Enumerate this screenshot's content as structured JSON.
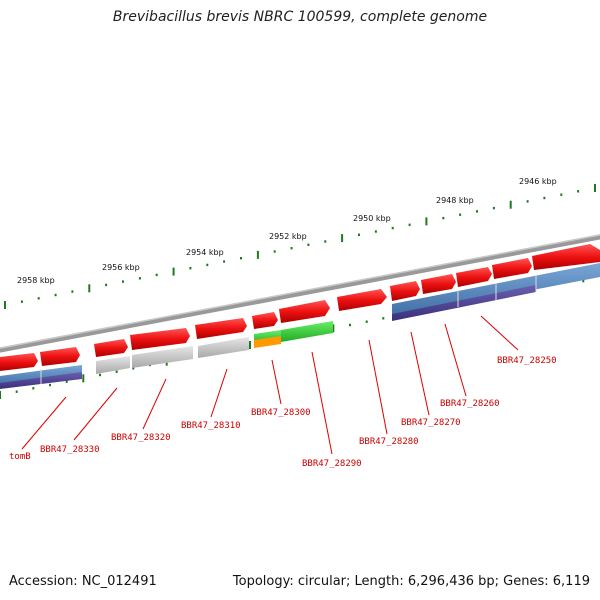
{
  "title": "Brevibacillus brevis NBRC 100599, complete genome",
  "footer": {
    "accession": "Accession: NC_012491",
    "stats": "Topology: circular; Length: 6,296,436 bp; Genes: 6,119"
  },
  "colors": {
    "forward_gene": "#ee1111",
    "grey_gene": "#bbbbbb",
    "green_gene": "#33cc33",
    "orange_gene": "#ff9900",
    "blue_band": "#4f7fb5",
    "purple_band": "#4a3f8f",
    "backbone": "#888888",
    "ticks": "#1e7a1e",
    "labels": "#cc0000"
  },
  "ticks": [
    {
      "label": "2946 kbp"
    },
    {
      "label": "2948 kbp"
    },
    {
      "label": "2950 kbp"
    },
    {
      "label": "2952 kbp"
    },
    {
      "label": "2954 kbp"
    },
    {
      "label": "2956 kbp"
    },
    {
      "label": "2958 kbp"
    }
  ],
  "genes": [
    {
      "label": "BBR47_28250"
    },
    {
      "label": "BBR47_28260"
    },
    {
      "label": "BBR47_28270"
    },
    {
      "label": "BBR47_28280"
    },
    {
      "label": "BBR47_28290"
    },
    {
      "label": "BBR47_28300"
    },
    {
      "label": "BBR47_28310"
    },
    {
      "label": "BBR47_28320"
    },
    {
      "label": "BBR47_28330"
    },
    {
      "label": "tomB"
    }
  ]
}
